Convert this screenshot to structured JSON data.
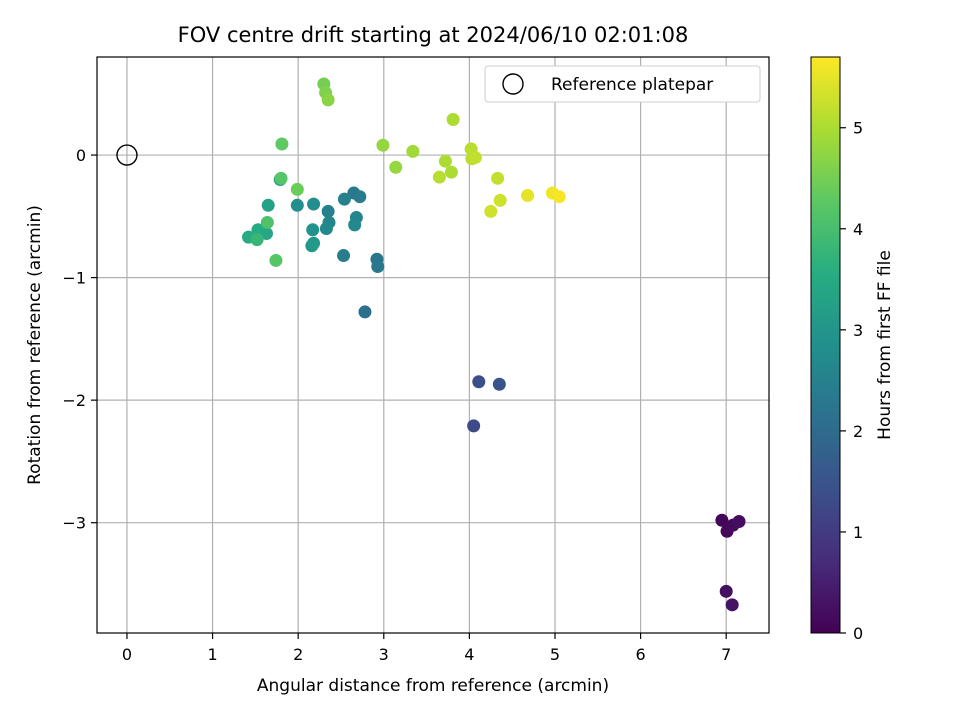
{
  "chart_data": {
    "type": "scatter",
    "title": "FOV centre drift starting at 2024/06/10 02:01:08",
    "xlabel": "Angular distance from reference (arcmin)",
    "ylabel": "Rotation from reference (arcmin)",
    "xlim": [
      -0.35,
      7.5
    ],
    "ylim": [
      -3.9,
      0.8
    ],
    "xticks": [
      0,
      1,
      2,
      3,
      4,
      5,
      6,
      7
    ],
    "yticks": [
      -3,
      -2,
      -1,
      0
    ],
    "xtick_labels": [
      "0",
      "1",
      "2",
      "3",
      "4",
      "5",
      "6",
      "7"
    ],
    "ytick_labels": [
      "−3",
      "−2",
      "−1",
      "0"
    ],
    "grid": true,
    "legend": {
      "position": "top-right",
      "entries": [
        "Reference platepar"
      ]
    },
    "reference_point": {
      "x": 0,
      "y": 0,
      "marker": "open-circle"
    },
    "colorbar": {
      "label": "Hours from first FF file",
      "colormap": "viridis",
      "range": [
        0,
        5.7
      ],
      "ticks": [
        0,
        1,
        2,
        3,
        4,
        5
      ],
      "tick_labels": [
        "0",
        "1",
        "2",
        "3",
        "4",
        "5"
      ]
    },
    "points": [
      {
        "x": 6.95,
        "y": -2.98,
        "c": 0.05
      },
      {
        "x": 7.01,
        "y": -3.07,
        "c": 0.1
      },
      {
        "x": 7.08,
        "y": -3.02,
        "c": 0.15
      },
      {
        "x": 7.15,
        "y": -2.99,
        "c": 0.2
      },
      {
        "x": 7.0,
        "y": -3.56,
        "c": 0.25
      },
      {
        "x": 7.07,
        "y": -3.67,
        "c": 0.3
      },
      {
        "x": 4.05,
        "y": -2.21,
        "c": 1.3
      },
      {
        "x": 4.11,
        "y": -1.85,
        "c": 1.4
      },
      {
        "x": 4.35,
        "y": -1.87,
        "c": 1.5
      },
      {
        "x": 2.78,
        "y": -1.28,
        "c": 2.1
      },
      {
        "x": 2.92,
        "y": -0.85,
        "c": 2.2
      },
      {
        "x": 2.93,
        "y": -0.91,
        "c": 2.3
      },
      {
        "x": 2.53,
        "y": -0.82,
        "c": 2.4
      },
      {
        "x": 2.65,
        "y": -0.31,
        "c": 2.3
      },
      {
        "x": 2.72,
        "y": -0.34,
        "c": 2.4
      },
      {
        "x": 2.54,
        "y": -0.36,
        "c": 2.5
      },
      {
        "x": 2.35,
        "y": -0.46,
        "c": 2.5
      },
      {
        "x": 2.36,
        "y": -0.55,
        "c": 2.6
      },
      {
        "x": 2.33,
        "y": -0.6,
        "c": 2.7
      },
      {
        "x": 2.68,
        "y": -0.51,
        "c": 2.6
      },
      {
        "x": 2.66,
        "y": -0.57,
        "c": 2.7
      },
      {
        "x": 1.99,
        "y": -0.41,
        "c": 2.8
      },
      {
        "x": 2.18,
        "y": -0.4,
        "c": 2.8
      },
      {
        "x": 2.17,
        "y": -0.61,
        "c": 2.9
      },
      {
        "x": 2.16,
        "y": -0.74,
        "c": 3.0
      },
      {
        "x": 2.18,
        "y": -0.72,
        "c": 3.1
      },
      {
        "x": 1.79,
        "y": -0.2,
        "c": 3.2
      },
      {
        "x": 1.65,
        "y": -0.41,
        "c": 3.3
      },
      {
        "x": 1.63,
        "y": -0.64,
        "c": 3.4
      },
      {
        "x": 1.53,
        "y": -0.61,
        "c": 3.5
      },
      {
        "x": 1.42,
        "y": -0.67,
        "c": 3.5
      },
      {
        "x": 1.52,
        "y": -0.69,
        "c": 3.8
      },
      {
        "x": 1.64,
        "y": -0.55,
        "c": 4.1
      },
      {
        "x": 1.74,
        "y": -0.86,
        "c": 4.2
      },
      {
        "x": 1.8,
        "y": -0.19,
        "c": 4.2
      },
      {
        "x": 1.81,
        "y": 0.09,
        "c": 4.3
      },
      {
        "x": 1.99,
        "y": -0.28,
        "c": 4.4
      },
      {
        "x": 2.3,
        "y": 0.58,
        "c": 4.5
      },
      {
        "x": 2.32,
        "y": 0.51,
        "c": 4.6
      },
      {
        "x": 2.35,
        "y": 0.45,
        "c": 4.7
      },
      {
        "x": 2.99,
        "y": 0.08,
        "c": 4.8
      },
      {
        "x": 3.14,
        "y": -0.1,
        "c": 4.8
      },
      {
        "x": 3.34,
        "y": 0.03,
        "c": 4.9
      },
      {
        "x": 3.81,
        "y": 0.29,
        "c": 5.0
      },
      {
        "x": 3.72,
        "y": -0.05,
        "c": 5.0
      },
      {
        "x": 3.79,
        "y": -0.14,
        "c": 5.0
      },
      {
        "x": 3.65,
        "y": -0.18,
        "c": 5.1
      },
      {
        "x": 4.02,
        "y": 0.05,
        "c": 5.1
      },
      {
        "x": 4.03,
        "y": -0.03,
        "c": 5.1
      },
      {
        "x": 4.07,
        "y": -0.02,
        "c": 5.2
      },
      {
        "x": 4.33,
        "y": -0.19,
        "c": 5.2
      },
      {
        "x": 4.36,
        "y": -0.37,
        "c": 5.3
      },
      {
        "x": 4.25,
        "y": -0.46,
        "c": 5.3
      },
      {
        "x": 4.68,
        "y": -0.33,
        "c": 5.5
      },
      {
        "x": 4.97,
        "y": -0.31,
        "c": 5.6
      },
      {
        "x": 5.05,
        "y": -0.34,
        "c": 5.65
      }
    ]
  }
}
